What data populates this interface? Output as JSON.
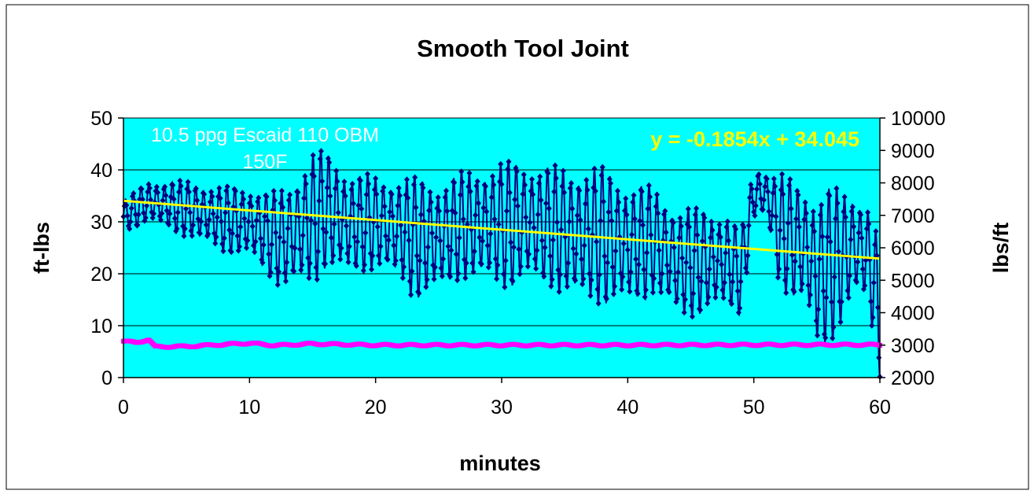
{
  "chart_data": {
    "type": "scatter",
    "title": "Smooth Tool Joint",
    "xlabel": "minutes",
    "ylabel_left": "ft-lbs",
    "ylabel_right": "lbs/ft",
    "xlim": [
      0,
      60
    ],
    "ylim_left": [
      0,
      50
    ],
    "ylim_right": [
      2000,
      10000
    ],
    "x_ticks": [
      "0",
      "10",
      "20",
      "30",
      "40",
      "50",
      "60"
    ],
    "y_ticks_left": [
      "0",
      "10",
      "20",
      "30",
      "40",
      "50"
    ],
    "y_ticks_right": [
      "2000",
      "3000",
      "4000",
      "5000",
      "6000",
      "7000",
      "8000",
      "9000",
      "10000"
    ],
    "grid": true,
    "annotations": {
      "fluid": "10.5 ppg Escaid 110 OBM",
      "temperature": "150F",
      "trendline_equation": "y = -0.1854x + 34.045"
    },
    "trendline": {
      "slope": -0.1854,
      "intercept": 34.045
    },
    "torque_series": {
      "axis": "left",
      "envelope_minutes": [
        0,
        2,
        5,
        8,
        10,
        12,
        13,
        15,
        16,
        18,
        20,
        22,
        23,
        25,
        27,
        30,
        32,
        34,
        36,
        38,
        40,
        42,
        44,
        46,
        48,
        49,
        50,
        51,
        52,
        54,
        55,
        56,
        58,
        59,
        60
      ],
      "envelope_low": [
        28,
        30,
        27,
        24,
        23,
        18,
        17,
        17,
        21,
        19,
        21,
        18,
        15,
        16,
        19,
        17,
        18,
        17,
        14,
        14,
        13,
        16,
        11,
        12,
        13,
        12,
        30,
        31,
        17,
        14,
        4,
        6,
        15,
        14,
        0
      ],
      "envelope_high": [
        34,
        38,
        38,
        37,
        37,
        36,
        37,
        44,
        44,
        40,
        39,
        39,
        39,
        38,
        40,
        42,
        42,
        41,
        41,
        41,
        38,
        37,
        33,
        33,
        32,
        28,
        41,
        40,
        40,
        37,
        36,
        37,
        36,
        34,
        26
      ]
    },
    "tension_series": {
      "axis": "right",
      "x": [
        0,
        1,
        2,
        2.5,
        5,
        8,
        10,
        12,
        15,
        20,
        30,
        40,
        50,
        60
      ],
      "values": [
        3120,
        3080,
        3170,
        2950,
        2960,
        3020,
        3060,
        2990,
        3040,
        3000,
        3000,
        3000,
        3010,
        3010
      ]
    },
    "colors": {
      "plot_background": "#00ffff",
      "torque": "#00007f",
      "tension": "#ff00ff",
      "trendline": "#ffff00",
      "annotation_text": "#ffffff",
      "equation_text": "#ffff00"
    }
  }
}
